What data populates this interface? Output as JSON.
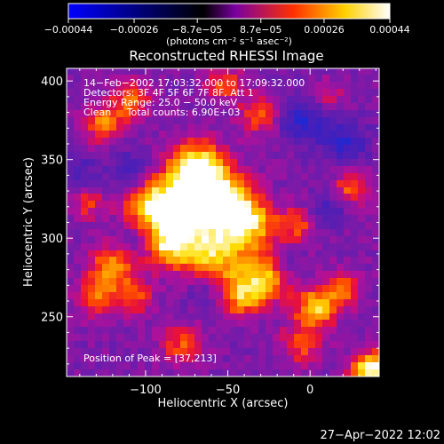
{
  "chart_data": {
    "type": "heatmap",
    "title": "Reconstructed RHESSI Image",
    "xlabel": "Heliocentric X (arcsec)",
    "ylabel": "Heliocentric Y (arcsec)",
    "xlim": [
      -148,
      42
    ],
    "ylim": [
      212,
      408
    ],
    "xticks": [
      -100,
      -50,
      0
    ],
    "yticks": [
      250,
      300,
      350,
      400
    ],
    "xtick_labels": [
      "−100",
      "−50",
      "0"
    ],
    "ytick_labels": [
      "250",
      "300",
      "350",
      "400"
    ],
    "grid": false,
    "colorbar": {
      "range": [
        -0.00044,
        0.00044
      ],
      "tick_values": [
        -0.00044,
        -0.00026,
        -8.7e-05,
        8.7e-05,
        0.00026,
        0.00044
      ],
      "tick_labels": [
        "−0.00044",
        "−0.00026",
        "−8.7e−05",
        "8.7e−05",
        "0.00026",
        "0.00044"
      ],
      "units_label": "(photons cm⁻² s⁻¹ asec⁻²)",
      "colors": [
        "#0000ff",
        "#000000",
        "#7a00a0",
        "#ff3000",
        "#ffd000",
        "#ffffff"
      ]
    },
    "annotations": [
      "14−Feb−2002 17:03:32.000 to 17:09:32.000",
      "Detectors: 3F 4F 5F 6F 7F 8F, Att 1",
      "Energy Range: 25.0 − 50.0 keV",
      "Clean     Total counts: 6.90E+03"
    ],
    "peak_label": "Position of Peak = [37,213]",
    "hotspots": [
      {
        "x": -68,
        "y": 343,
        "sigma": 12,
        "amp": 1.0
      },
      {
        "x": -76,
        "y": 318,
        "sigma": 16,
        "amp": 0.85
      },
      {
        "x": -50,
        "y": 322,
        "sigma": 12,
        "amp": 0.8
      },
      {
        "x": -98,
        "y": 320,
        "sigma": 11,
        "amp": 0.65
      },
      {
        "x": -60,
        "y": 287,
        "sigma": 14,
        "amp": 0.75
      },
      {
        "x": -87,
        "y": 296,
        "sigma": 10,
        "amp": 0.6
      },
      {
        "x": -35,
        "y": 308,
        "sigma": 11,
        "amp": 0.65
      },
      {
        "x": -28,
        "y": 275,
        "sigma": 11,
        "amp": 0.7
      },
      {
        "x": -42,
        "y": 262,
        "sigma": 9,
        "amp": 0.55
      },
      {
        "x": -120,
        "y": 282,
        "sigma": 10,
        "amp": 0.6
      },
      {
        "x": -130,
        "y": 262,
        "sigma": 9,
        "amp": 0.5
      },
      {
        "x": -107,
        "y": 262,
        "sigma": 8,
        "amp": 0.45
      },
      {
        "x": -125,
        "y": 373,
        "sigma": 9,
        "amp": 0.55
      },
      {
        "x": -108,
        "y": 388,
        "sigma": 8,
        "amp": 0.5
      },
      {
        "x": -30,
        "y": 378,
        "sigma": 9,
        "amp": 0.5
      },
      {
        "x": -52,
        "y": 398,
        "sigma": 8,
        "amp": 0.45
      },
      {
        "x": 3,
        "y": 255,
        "sigma": 9,
        "amp": 0.75
      },
      {
        "x": 20,
        "y": 268,
        "sigma": 8,
        "amp": 0.5
      },
      {
        "x": 25,
        "y": 332,
        "sigma": 8,
        "amp": 0.5
      },
      {
        "x": -8,
        "y": 308,
        "sigma": 8,
        "amp": 0.45
      },
      {
        "x": 37,
        "y": 216,
        "sigma": 8,
        "amp": 1.0
      },
      {
        "x": -5,
        "y": 232,
        "sigma": 9,
        "amp": 0.45
      },
      {
        "x": -78,
        "y": 232,
        "sigma": 9,
        "amp": 0.45
      },
      {
        "x": -135,
        "y": 322,
        "sigma": 7,
        "amp": 0.4
      },
      {
        "x": 10,
        "y": 390,
        "sigma": 7,
        "amp": 0.35
      }
    ],
    "coldspots": [
      {
        "x": -5,
        "y": 375,
        "sigma": 11,
        "amp": 0.8
      },
      {
        "x": 22,
        "y": 360,
        "sigma": 10,
        "amp": 0.7
      },
      {
        "x": -110,
        "y": 342,
        "sigma": 9,
        "amp": 0.6
      },
      {
        "x": -65,
        "y": 268,
        "sigma": 9,
        "amp": 0.55
      },
      {
        "x": -105,
        "y": 300,
        "sigma": 8,
        "amp": 0.5
      },
      {
        "x": 10,
        "y": 318,
        "sigma": 8,
        "amp": 0.55
      },
      {
        "x": -140,
        "y": 340,
        "sigma": 8,
        "amp": 0.45
      },
      {
        "x": -15,
        "y": 285,
        "sigma": 7,
        "amp": 0.45
      }
    ]
  },
  "footer": {
    "timestamp": "27−Apr−2022 12:02"
  }
}
